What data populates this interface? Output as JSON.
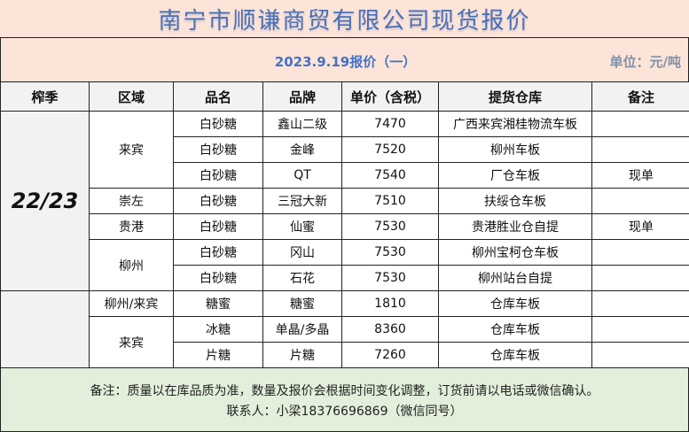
{
  "title": "南宁市顺谦商贸有限公司现货报价",
  "subtitle": {
    "date": "2023.9.19报价（一）",
    "unit": "单位：元/吨"
  },
  "headers": [
    "榨季",
    "区域",
    "品名",
    "品牌",
    "单价（含税）",
    "提货仓库",
    "备注"
  ],
  "season": "22/23",
  "regions": {
    "laibin": "来宾",
    "chongzuo": "崇左",
    "guigang": "贵港",
    "liuzhou": "柳州",
    "liuzhou_laibin": "柳州/来宾",
    "laibin2": "来宾"
  },
  "rows": [
    {
      "product": "白砂糖",
      "brand": "鑫山二级",
      "price": "7470",
      "warehouse": "广西来宾湘桂物流车板",
      "note": ""
    },
    {
      "product": "白砂糖",
      "brand": "金峰",
      "price": "7520",
      "warehouse": "柳州车板",
      "note": ""
    },
    {
      "product": "白砂糖",
      "brand": "QT",
      "price": "7540",
      "warehouse": "厂仓车板",
      "note": "现单"
    },
    {
      "product": "白砂糖",
      "brand": "三冠大新",
      "price": "7510",
      "warehouse": "扶绥仓车板",
      "note": ""
    },
    {
      "product": "白砂糖",
      "brand": "仙蜜",
      "price": "7530",
      "warehouse": "贵港胜业仓自提",
      "note": "现单"
    },
    {
      "product": "白砂糖",
      "brand": "冈山",
      "price": "7530",
      "warehouse": "柳州宝柯仓车板",
      "note": ""
    },
    {
      "product": "白砂糖",
      "brand": "石花",
      "price": "7530",
      "warehouse": "柳州站台自提",
      "note": ""
    },
    {
      "product": "糖蜜",
      "brand": "糖蜜",
      "price": "1810",
      "warehouse": "仓库车板",
      "note": ""
    },
    {
      "product": "冰糖",
      "brand": "单晶/多晶",
      "price": "8360",
      "warehouse": "仓库车板",
      "note": ""
    },
    {
      "product": "片糖",
      "brand": "片糖",
      "price": "7260",
      "warehouse": "仓库车板",
      "note": ""
    }
  ],
  "footer": {
    "note": "备注：质量以在库品质为准，数量及报价会根据时间变化调整，订货前请以电话或微信确认。",
    "contact": "联系人：小梁18376696869（微信同号）"
  }
}
